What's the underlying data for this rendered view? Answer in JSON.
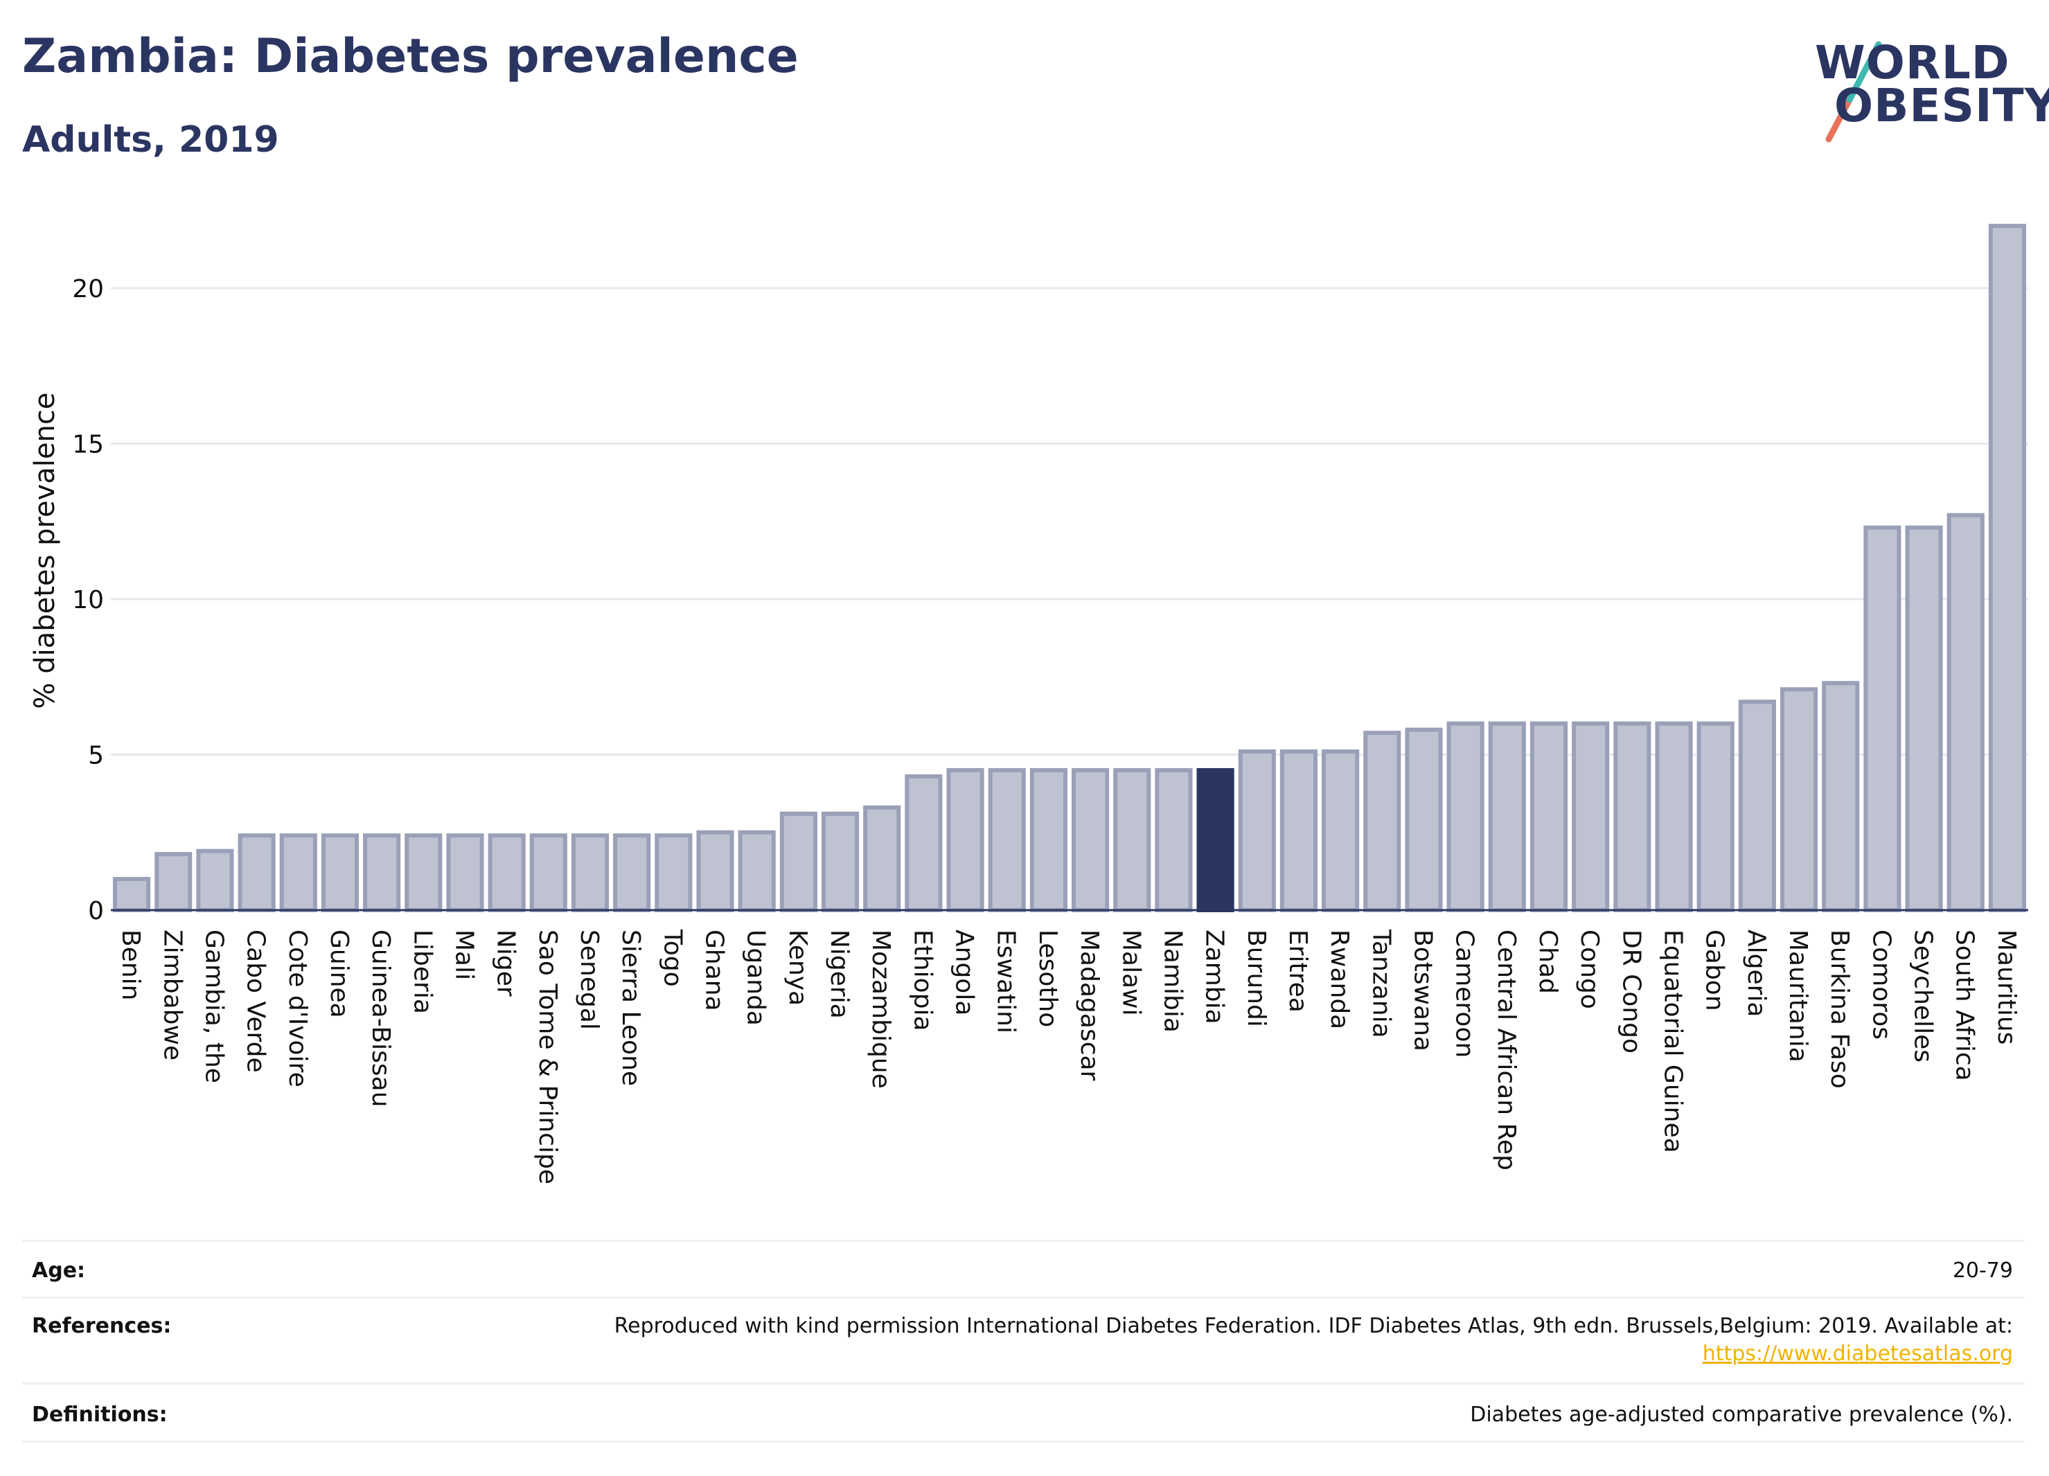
{
  "header": {
    "title": "Zambia: Diabetes prevalence",
    "subtitle": "Adults, 2019"
  },
  "logo": {
    "line1": "WORLD",
    "line2": "OBESITY"
  },
  "chart_data": {
    "type": "bar",
    "title": "Zambia: Diabetes prevalence",
    "subtitle": "Adults, 2019",
    "ylabel": "% diabetes prevalence",
    "xlabel": "",
    "ylim": [
      0,
      22.5
    ],
    "yticks": [
      0,
      5,
      10,
      15,
      20
    ],
    "grid": true,
    "highlight": "Zambia",
    "colors": {
      "bar": "#bfc3d1",
      "bar_border": "#9aa0b8",
      "highlight": "#2b3562",
      "grid": "#e6e8ee"
    },
    "categories": [
      "Benin",
      "Zimbabwe",
      "Gambia, the",
      "Cabo Verde",
      "Cote d'Ivoire",
      "Guinea",
      "Guinea-Bissau",
      "Liberia",
      "Mali",
      "Niger",
      "Sao Tome & Principe",
      "Senegal",
      "Sierra Leone",
      "Togo",
      "Ghana",
      "Uganda",
      "Kenya",
      "Nigeria",
      "Mozambique",
      "Ethiopia",
      "Angola",
      "Eswatini",
      "Lesotho",
      "Madagascar",
      "Malawi",
      "Namibia",
      "Zambia",
      "Burundi",
      "Eritrea",
      "Rwanda",
      "Tanzania",
      "Botswana",
      "Cameroon",
      "Central African Rep",
      "Chad",
      "Congo",
      "DR Congo",
      "Equatorial Guinea",
      "Gabon",
      "Algeria",
      "Mauritania",
      "Burkina Faso",
      "Comoros",
      "Seychelles",
      "South Africa",
      "Mauritius"
    ],
    "values": [
      1.0,
      1.8,
      1.9,
      2.4,
      2.4,
      2.4,
      2.4,
      2.4,
      2.4,
      2.4,
      2.4,
      2.4,
      2.4,
      2.4,
      2.5,
      2.5,
      3.1,
      3.1,
      3.3,
      4.3,
      4.5,
      4.5,
      4.5,
      4.5,
      4.5,
      4.5,
      4.5,
      5.1,
      5.1,
      5.1,
      5.7,
      5.8,
      6.0,
      6.0,
      6.0,
      6.0,
      6.0,
      6.0,
      6.0,
      6.7,
      7.1,
      7.3,
      12.3,
      12.3,
      12.7,
      22.0
    ]
  },
  "footer": {
    "age_label": "Age:",
    "age_value": "20-79",
    "references_label": "References:",
    "references_text": "Reproduced with kind permission International Diabetes Federation. IDF Diabetes Atlas, 9th edn. Brussels,Belgium: 2019. Available at:",
    "references_link": "https://www.diabetesatlas.org",
    "definitions_label": "Definitions:",
    "definitions_text": "Diabetes age-adjusted comparative prevalence (%)."
  }
}
